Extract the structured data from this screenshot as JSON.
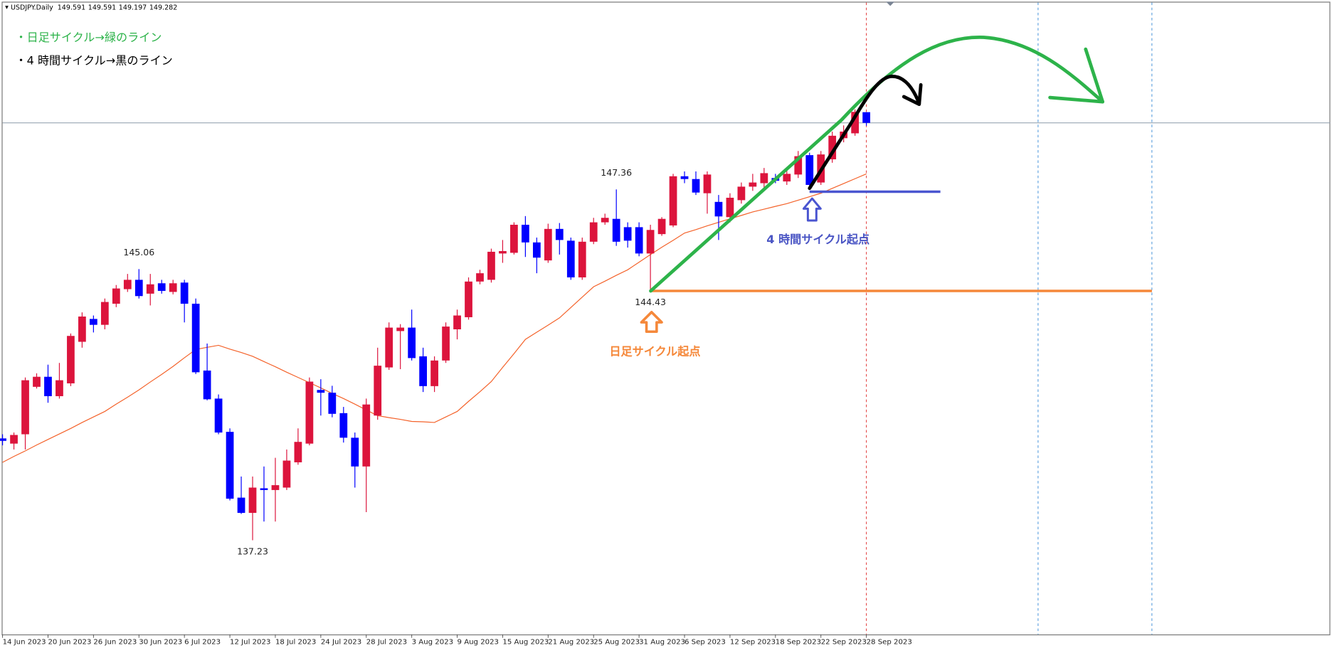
{
  "chart_data": {
    "type": "candlestick",
    "title": "USDJPY.Daily",
    "categories": [
      "14 Jun 2023",
      null,
      null,
      null,
      "20 Jun 2023",
      null,
      null,
      null,
      "26 Jun 2023",
      null,
      null,
      null,
      "30 Jun 2023",
      null,
      null,
      null,
      "6 Jul 2023",
      null,
      null,
      null,
      "12 Jul 2023",
      null,
      null,
      null,
      "18 Jul 2023",
      null,
      null,
      null,
      "24 Jul 2023",
      null,
      null,
      null,
      "28 Jul 2023",
      null,
      null,
      null,
      "3 Aug 2023",
      null,
      null,
      null,
      "9 Aug 2023",
      null,
      null,
      null,
      "15 Aug 2023",
      null,
      null,
      null,
      "21 Aug 2023",
      null,
      null,
      null,
      "25 Aug 2023",
      null,
      null,
      null,
      "31 Aug 2023",
      null,
      null,
      null,
      "6 Sep 2023",
      null,
      null,
      null,
      "12 Sep 2023",
      null,
      null,
      null,
      "18 Sep 2023",
      null,
      null,
      null,
      "22 Sep 2023",
      null,
      null,
      null,
      "28 Sep 2023"
    ],
    "open": [
      140.17,
      140.02,
      140.29,
      141.66,
      141.95,
      141.39,
      141.76,
      142.96,
      143.62,
      143.45,
      144.06,
      144.48,
      144.75,
      144.35,
      144.65,
      144.4,
      144.67,
      144.06,
      142.13,
      141.32,
      140.36,
      138.46,
      138.02,
      138.73,
      138.68,
      138.75,
      139.48,
      140.02,
      141.57,
      141.49,
      140.9,
      140.19,
      139.36,
      140.83,
      142.22,
      143.27,
      143.37,
      142.54,
      141.68,
      142.42,
      143.32,
      143.67,
      144.7,
      144.75,
      145.51,
      145.53,
      146.34,
      145.83,
      145.31,
      146.22,
      145.88,
      144.82,
      145.85,
      146.41,
      146.51,
      146.27,
      146.27,
      145.51,
      146.07,
      146.32,
      147.74,
      147.66,
      147.25,
      147.0,
      146.56,
      147.05,
      147.44,
      147.54,
      147.69,
      147.59,
      147.79,
      148.35,
      147.56,
      148.23,
      148.84,
      148.98,
      149.591
    ],
    "high": [
      140.29,
      140.34,
      141.93,
      142.05,
      142.3,
      142.35,
      143.2,
      143.81,
      143.72,
      144.21,
      144.6,
      144.92,
      145.06,
      144.92,
      144.75,
      144.75,
      144.75,
      144.21,
      142.91,
      141.44,
      140.46,
      139.07,
      139.07,
      139.36,
      139.61,
      139.85,
      140.46,
      141.93,
      141.88,
      141.69,
      141.08,
      140.34,
      141.32,
      142.79,
      143.52,
      143.47,
      143.89,
      142.79,
      142.54,
      143.52,
      143.89,
      144.82,
      145.04,
      145.65,
      145.9,
      146.41,
      146.59,
      145.97,
      146.37,
      146.39,
      145.97,
      145.97,
      146.54,
      146.66,
      147.36,
      146.41,
      146.41,
      146.34,
      146.56,
      147.81,
      147.88,
      147.88,
      147.88,
      147.2,
      147.25,
      147.56,
      147.81,
      147.98,
      147.81,
      147.93,
      148.47,
      148.42,
      148.47,
      149.03,
      149.21,
      149.67,
      149.591
    ],
    "low": [
      139.97,
      139.85,
      139.85,
      141.61,
      141.2,
      141.32,
      141.68,
      142.79,
      143.23,
      143.32,
      143.96,
      144.4,
      144.21,
      144.01,
      144.35,
      144.33,
      143.52,
      142.03,
      141.27,
      140.29,
      138.38,
      137.99,
      137.23,
      137.77,
      137.77,
      138.68,
      139.41,
      139.97,
      140.83,
      140.78,
      140.05,
      138.75,
      138.04,
      140.71,
      142.15,
      142.17,
      142.42,
      141.51,
      141.51,
      142.35,
      143.03,
      143.6,
      144.62,
      144.67,
      145.24,
      145.48,
      145.41,
      144.94,
      145.24,
      145.48,
      144.75,
      144.75,
      145.78,
      146.34,
      145.73,
      145.68,
      145.43,
      144.43,
      146.02,
      146.27,
      147.54,
      147.2,
      146.66,
      145.9,
      146.41,
      146.95,
      147.32,
      147.39,
      147.54,
      147.49,
      147.69,
      147.39,
      147.49,
      148.13,
      148.72,
      148.91,
      149.197
    ],
    "close": [
      140.1,
      140.27,
      141.85,
      141.95,
      141.39,
      141.85,
      143.13,
      143.69,
      143.45,
      144.11,
      144.5,
      144.75,
      144.28,
      144.62,
      144.43,
      144.65,
      144.06,
      142.08,
      141.3,
      140.34,
      138.43,
      138.02,
      138.75,
      138.68,
      138.82,
      139.53,
      140.07,
      141.81,
      141.49,
      140.88,
      140.19,
      139.36,
      141.15,
      142.27,
      143.37,
      143.37,
      142.49,
      141.68,
      142.42,
      143.4,
      143.72,
      144.7,
      144.94,
      145.56,
      145.58,
      146.34,
      145.83,
      145.39,
      146.22,
      145.9,
      144.82,
      145.85,
      146.41,
      146.54,
      145.85,
      145.88,
      145.51,
      146.19,
      146.51,
      147.74,
      147.66,
      147.27,
      147.79,
      146.58,
      147.12,
      147.44,
      147.56,
      147.83,
      147.61,
      147.81,
      148.32,
      147.49,
      148.37,
      148.91,
      149.03,
      149.6,
      149.282
    ],
    "up_color": "#dc143c",
    "down_color": "#0000ff",
    "ma": {
      "color": "#f4622a",
      "values": [
        139.48,
        139.65,
        139.81,
        139.98,
        140.14,
        140.3,
        140.46,
        140.63,
        140.79,
        140.95,
        141.16,
        141.36,
        141.57,
        141.8,
        142.02,
        142.25,
        142.5,
        142.74,
        142.8,
        142.86,
        142.75,
        142.65,
        142.54,
        142.39,
        142.24,
        142.08,
        141.93,
        141.78,
        141.63,
        141.47,
        141.32,
        141.16,
        140.99,
        140.83,
        140.77,
        140.72,
        140.66,
        140.65,
        140.63,
        140.79,
        140.95,
        141.24,
        141.52,
        141.81,
        142.22,
        142.62,
        143.03,
        143.24,
        143.44,
        143.65,
        143.95,
        144.25,
        144.55,
        144.71,
        144.88,
        145.04,
        145.26,
        145.48,
        145.69,
        145.89,
        146.1,
        146.2,
        146.31,
        146.41,
        146.51,
        146.61,
        146.71,
        146.79,
        146.87,
        146.95,
        147.05,
        147.15,
        147.25,
        147.39,
        147.53,
        147.67,
        147.81
      ]
    },
    "extreme_labels": [
      145.06,
      137.23,
      147.36,
      144.43
    ],
    "ylim": [
      134.51,
      152.83
    ],
    "annotations": {
      "daily_legend": "・日足サイクル→緑のライン",
      "h4_legend": "・4 時間サイクル→黒のライン",
      "h4_start": "4 時間サイクル起点",
      "daily_start": "日足サイクル起点"
    }
  }
}
